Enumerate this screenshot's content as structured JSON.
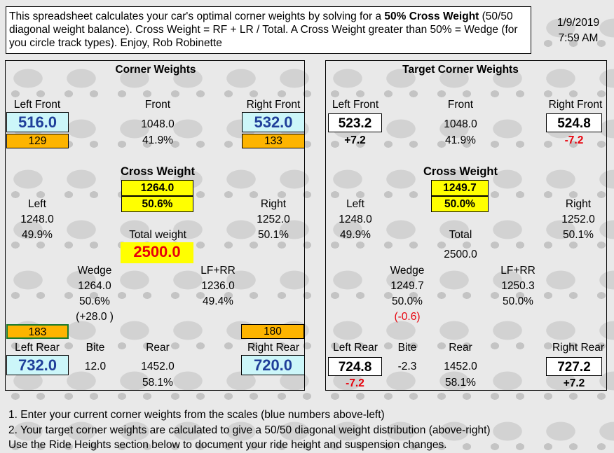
{
  "intro": {
    "part1": "This spreadsheet calculates your car's optimal corner weights by solving for a ",
    "bold": "50% Cross Weight",
    "part2": " (50/50 diagonal weight balance).  Cross Weight = RF + LR / Total. A Cross Weight greater than 50% = Wedge (for you circle track types). Enjoy, Rob Robinette"
  },
  "datetime": {
    "date": "1/9/2019",
    "time": "7:59 AM"
  },
  "corner": {
    "title": "Corner Weights",
    "lf_label": "Left Front",
    "lf_value": "516.0",
    "lf_diff": "129",
    "front_label": "Front",
    "front_value": "1048.0",
    "front_pct": "41.9%",
    "rf_label": "Right Front",
    "rf_value": "532.0",
    "rf_diff": "133",
    "cross_label": "Cross Weight",
    "cross_value": "1264.0",
    "cross_pct": "50.6%",
    "left_label": "Left",
    "left_value": "1248.0",
    "left_pct": "49.9%",
    "right_label": "Right",
    "right_value": "1252.0",
    "right_pct": "50.1%",
    "total_label": "Total weight",
    "total_value": "2500.0",
    "wedge_label": "Wedge",
    "wedge_value": "1264.0",
    "wedge_pct": "50.6%",
    "wedge_diff": "(+28.0 )",
    "lfrr_label": "LF+RR",
    "lfrr_value": "1236.0",
    "lfrr_pct": "49.4%",
    "lr_diff": "183",
    "rr_diff": "180",
    "lr_label": "Left Rear",
    "lr_value": "732.0",
    "bite_label": "Bite",
    "bite_value": "12.0",
    "rear_label": "Rear",
    "rear_value": "1452.0",
    "rear_pct": "58.1%",
    "rr_label": "Right Rear",
    "rr_value": "720.0"
  },
  "target": {
    "title": "Target Corner Weights",
    "lf_label": "Left Front",
    "lf_value": "523.2",
    "lf_diff": "+7.2",
    "front_label": "Front",
    "front_value": "1048.0",
    "front_pct": "41.9%",
    "rf_label": "Right Front",
    "rf_value": "524.8",
    "rf_diff": "-7.2",
    "cross_label": "Cross Weight",
    "cross_value": "1249.7",
    "cross_pct": "50.0%",
    "left_label": "Left",
    "left_value": "1248.0",
    "left_pct": "49.9%",
    "right_label": "Right",
    "right_value": "1252.0",
    "right_pct": "50.1%",
    "total_label": "Total",
    "total_value": "2500.0",
    "wedge_label": "Wedge",
    "wedge_value": "1249.7",
    "wedge_pct": "50.0%",
    "wedge_diff": "(-0.6)",
    "lfrr_label": "LF+RR",
    "lfrr_value": "1250.3",
    "lfrr_pct": "50.0%",
    "lr_label": "Left Rear",
    "lr_value": "724.8",
    "lr_diff": "-7.2",
    "bite_label": "Bite",
    "bite_value": "-2.3",
    "rear_label": "Rear",
    "rear_value": "1452.0",
    "rear_pct": "58.1%",
    "rr_label": "Right Rear",
    "rr_value": "727.2",
    "rr_diff": "+7.2"
  },
  "notes": {
    "line1": "1. Enter your current corner weights from the scales (blue numbers above-left)",
    "line2": "2. Your target corner weights are calculated to give a 50/50 diagonal weight distribution (above-right)",
    "line3": "Use the Ride Heights section below to document your ride height and suspension changes."
  },
  "colors": {
    "input_cell": "#ccf6f9",
    "diff_cell": "#fdb400",
    "highlight": "#ffff00",
    "negative": "#e8000b",
    "input_text": "#1f3f9a"
  }
}
